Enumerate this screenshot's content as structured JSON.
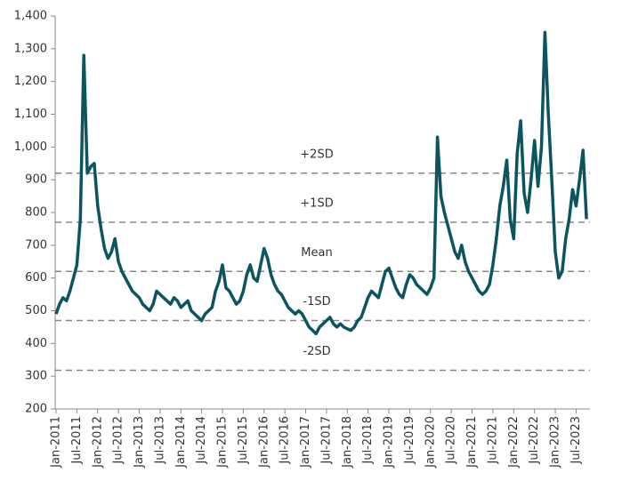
{
  "chart_data": {
    "type": "line",
    "x": [
      "2011-01",
      "2011-02",
      "2011-03",
      "2011-04",
      "2011-05",
      "2011-06",
      "2011-07",
      "2011-08",
      "2011-09",
      "2011-10",
      "2011-11",
      "2011-12",
      "2012-01",
      "2012-02",
      "2012-03",
      "2012-04",
      "2012-05",
      "2012-06",
      "2012-07",
      "2012-08",
      "2012-09",
      "2012-10",
      "2012-11",
      "2012-12",
      "2013-01",
      "2013-02",
      "2013-03",
      "2013-04",
      "2013-05",
      "2013-06",
      "2013-07",
      "2013-08",
      "2013-09",
      "2013-10",
      "2013-11",
      "2013-12",
      "2014-01",
      "2014-02",
      "2014-03",
      "2014-04",
      "2014-05",
      "2014-06",
      "2014-07",
      "2014-08",
      "2014-09",
      "2014-10",
      "2014-11",
      "2014-12",
      "2015-01",
      "2015-02",
      "2015-03",
      "2015-04",
      "2015-05",
      "2015-06",
      "2015-07",
      "2015-08",
      "2015-09",
      "2015-10",
      "2015-11",
      "2015-12",
      "2016-01",
      "2016-02",
      "2016-03",
      "2016-04",
      "2016-05",
      "2016-06",
      "2016-07",
      "2016-08",
      "2016-09",
      "2016-10",
      "2016-11",
      "2016-12",
      "2017-01",
      "2017-02",
      "2017-03",
      "2017-04",
      "2017-05",
      "2017-06",
      "2017-07",
      "2017-08",
      "2017-09",
      "2017-10",
      "2017-11",
      "2017-12",
      "2018-01",
      "2018-02",
      "2018-03",
      "2018-04",
      "2018-05",
      "2018-06",
      "2018-07",
      "2018-08",
      "2018-09",
      "2018-10",
      "2018-11",
      "2018-12",
      "2019-01",
      "2019-02",
      "2019-03",
      "2019-04",
      "2019-05",
      "2019-06",
      "2019-07",
      "2019-08",
      "2019-09",
      "2019-10",
      "2019-11",
      "2019-12",
      "2020-01",
      "2020-02",
      "2020-03",
      "2020-04",
      "2020-05",
      "2020-06",
      "2020-07",
      "2020-08",
      "2020-09",
      "2020-10",
      "2020-11",
      "2020-12",
      "2021-01",
      "2021-02",
      "2021-03",
      "2021-04",
      "2021-05",
      "2021-06",
      "2021-07",
      "2021-08",
      "2021-09",
      "2021-10",
      "2021-11",
      "2021-12",
      "2022-01",
      "2022-02",
      "2022-03",
      "2022-04",
      "2022-05",
      "2022-06",
      "2022-07",
      "2022-08",
      "2022-09",
      "2022-10",
      "2022-11",
      "2022-12",
      "2023-01",
      "2023-02",
      "2023-03",
      "2023-04",
      "2023-05",
      "2023-06",
      "2023-07",
      "2023-08",
      "2023-09",
      "2023-10"
    ],
    "series": [
      {
        "color": "#0b5561",
        "values": [
          490,
          520,
          540,
          530,
          560,
          600,
          640,
          780,
          1280,
          920,
          940,
          950,
          820,
          750,
          690,
          660,
          680,
          720,
          650,
          620,
          600,
          580,
          560,
          550,
          540,
          520,
          510,
          500,
          520,
          560,
          550,
          540,
          530,
          520,
          540,
          530,
          510,
          520,
          530,
          500,
          490,
          480,
          470,
          490,
          500,
          510,
          560,
          590,
          640,
          570,
          560,
          540,
          520,
          530,
          560,
          610,
          640,
          600,
          590,
          640,
          690,
          660,
          610,
          580,
          560,
          550,
          530,
          510,
          500,
          490,
          500,
          490,
          470,
          450,
          440,
          430,
          450,
          460,
          470,
          480,
          460,
          450,
          460,
          450,
          445,
          440,
          450,
          470,
          480,
          510,
          540,
          560,
          550,
          540,
          580,
          620,
          630,
          600,
          570,
          550,
          540,
          580,
          610,
          600,
          580,
          570,
          560,
          550,
          570,
          600,
          1030,
          850,
          800,
          760,
          720,
          680,
          660,
          700,
          650,
          620,
          600,
          580,
          560,
          550,
          560,
          580,
          640,
          720,
          820,
          880,
          960,
          780,
          720,
          980,
          1080,
          860,
          800,
          900,
          1020,
          880,
          1000,
          1350,
          1100,
          900,
          680,
          600,
          620,
          720,
          780,
          870,
          820,
          900,
          990,
          780
        ]
      }
    ],
    "xlim": [
      "2011-01",
      "2023-11"
    ],
    "xticks": [
      {
        "value": "2011-01",
        "label": "Jan-2011"
      },
      {
        "value": "2011-07",
        "label": "Jul-2011"
      },
      {
        "value": "2012-01",
        "label": "Jan-2012"
      },
      {
        "value": "2012-07",
        "label": "Jul-2012"
      },
      {
        "value": "2013-01",
        "label": "Jan-2013"
      },
      {
        "value": "2013-07",
        "label": "Jul-2013"
      },
      {
        "value": "2014-01",
        "label": "Jan-2014"
      },
      {
        "value": "2014-07",
        "label": "Jul-2014"
      },
      {
        "value": "2015-01",
        "label": "Jan-2015"
      },
      {
        "value": "2015-07",
        "label": "Jul-2015"
      },
      {
        "value": "2016-01",
        "label": "Jan-2016"
      },
      {
        "value": "2016-07",
        "label": "Jul-2016"
      },
      {
        "value": "2017-01",
        "label": "Jan-2017"
      },
      {
        "value": "2017-07",
        "label": "Jul-2017"
      },
      {
        "value": "2018-01",
        "label": "Jan-2018"
      },
      {
        "value": "2018-07",
        "label": "Jul-2018"
      },
      {
        "value": "2019-01",
        "label": "Jan-2019"
      },
      {
        "value": "2019-07",
        "label": "Jul-2019"
      },
      {
        "value": "2020-01",
        "label": "Jan-2020"
      },
      {
        "value": "2020-07",
        "label": "Jul-2020"
      },
      {
        "value": "2021-01",
        "label": "Jan-2021"
      },
      {
        "value": "2021-07",
        "label": "Jul-2021"
      },
      {
        "value": "2022-01",
        "label": "Jan-2022"
      },
      {
        "value": "2022-07",
        "label": "Jul-2022"
      },
      {
        "value": "2023-01",
        "label": "Jan-2023"
      },
      {
        "value": "2023-07",
        "label": "Jul-2023"
      }
    ],
    "ylim": [
      200,
      1400
    ],
    "yticks": [
      200,
      300,
      400,
      500,
      600,
      700,
      800,
      900,
      {
        "value": 1000,
        "label": "1,000"
      },
      {
        "value": 1100,
        "label": "1,100"
      },
      {
        "value": 1200,
        "label": "1,200"
      },
      {
        "value": 1300,
        "label": "1,300"
      },
      {
        "value": 1400,
        "label": "1,400"
      }
    ],
    "reference_lines": [
      {
        "label": "+2SD",
        "value": 920
      },
      {
        "label": "+1SD",
        "value": 770
      },
      {
        "label": "Mean",
        "value": 620
      },
      {
        "label": "-1SD",
        "value": 470
      },
      {
        "label": "-2SD",
        "value": 318
      }
    ]
  }
}
